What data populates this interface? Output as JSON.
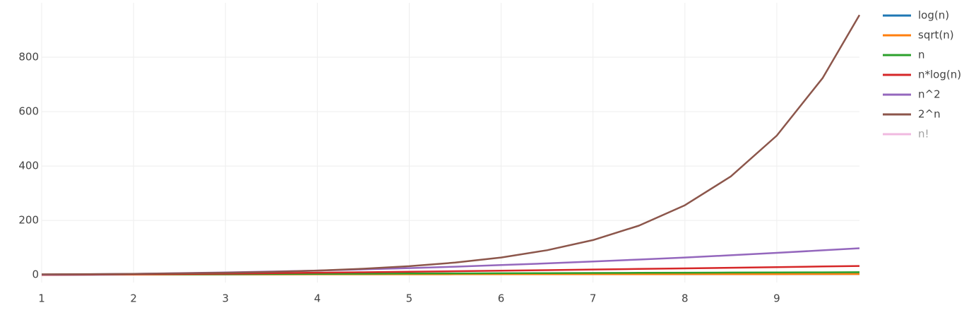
{
  "chart_data": {
    "type": "line",
    "x": [
      1,
      1.5,
      2,
      2.5,
      3,
      3.5,
      4,
      4.5,
      5,
      5.5,
      6,
      6.5,
      7,
      7.5,
      8,
      8.5,
      9,
      9.5,
      9.9
    ],
    "series": [
      {
        "name": "log(n)",
        "color": "#1f77b4",
        "values": [
          0,
          0.585,
          1,
          1.322,
          1.585,
          1.807,
          2,
          2.17,
          2.322,
          2.459,
          2.585,
          2.7,
          2.807,
          2.907,
          3,
          3.087,
          3.17,
          3.248,
          3.308
        ]
      },
      {
        "name": "sqrt(n)",
        "color": "#ff7f0e",
        "values": [
          1,
          1.225,
          1.414,
          1.581,
          1.732,
          1.871,
          2,
          2.121,
          2.236,
          2.345,
          2.449,
          2.55,
          2.646,
          2.739,
          2.828,
          2.915,
          3,
          3.082,
          3.146
        ]
      },
      {
        "name": "n",
        "color": "#2ca02c",
        "values": [
          1,
          1.5,
          2,
          2.5,
          3,
          3.5,
          4,
          4.5,
          5,
          5.5,
          6,
          6.5,
          7,
          7.5,
          8,
          8.5,
          9,
          9.5,
          9.9
        ]
      },
      {
        "name": "n*log(n)",
        "color": "#d62728",
        "values": [
          0,
          0.877,
          2,
          3.305,
          4.755,
          6.325,
          8,
          9.765,
          11.61,
          13.52,
          15.51,
          17.55,
          19.65,
          21.8,
          24,
          26.24,
          28.53,
          30.86,
          32.75
        ]
      },
      {
        "name": "n^2",
        "color": "#9467bd",
        "values": [
          1,
          2.25,
          4,
          6.25,
          9,
          12.25,
          16,
          20.25,
          25,
          30.25,
          36,
          42.25,
          49,
          56.25,
          64,
          72.25,
          81,
          90.25,
          98.01
        ]
      },
      {
        "name": "2^n",
        "color": "#8c564b",
        "values": [
          2,
          2.83,
          4,
          5.66,
          8,
          11.31,
          16,
          22.63,
          32,
          45.25,
          64,
          90.51,
          128,
          181.02,
          256,
          362.04,
          512,
          724.08,
          955.4
        ]
      },
      {
        "name": "n!",
        "color": "#e377c2",
        "visible": "legendonly"
      }
    ],
    "xlim": [
      1,
      9.9
    ],
    "xticks": [
      1,
      2,
      3,
      4,
      5,
      6,
      7,
      8,
      9
    ],
    "ylim": [
      -28,
      1000
    ],
    "yticks": [
      0,
      200,
      400,
      600,
      800
    ],
    "grid": true,
    "legend": "right"
  }
}
